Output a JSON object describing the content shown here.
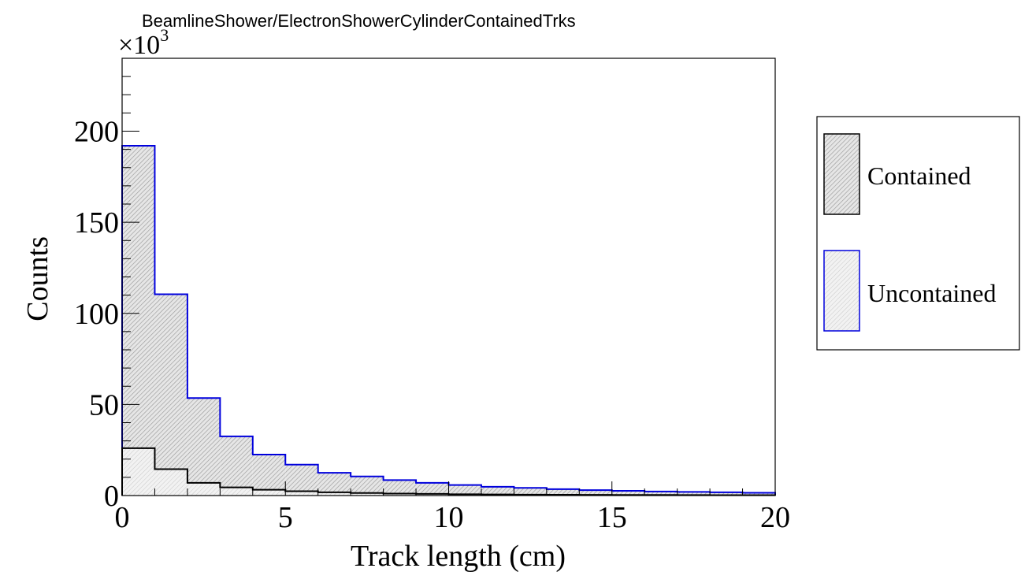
{
  "chart_data": {
    "type": "bar",
    "title": "BeamlineShower/ElectronShowerCylinderContainedTrks",
    "xlabel": "Track length (cm)",
    "ylabel": "Counts",
    "y_multiplier_label": "×10",
    "y_multiplier_exponent": "3",
    "xlim": [
      0,
      20
    ],
    "ylim": [
      0,
      240
    ],
    "x_ticks": [
      "0",
      "5",
      "10",
      "15",
      "20"
    ],
    "y_ticks": [
      "0",
      "50",
      "100",
      "150",
      "200"
    ],
    "bin_edges": [
      0,
      1,
      2,
      3,
      4,
      5,
      6,
      7,
      8,
      9,
      10,
      11,
      12,
      13,
      14,
      15,
      16,
      17,
      18,
      19,
      20
    ],
    "series": [
      {
        "name": "Contained",
        "color": "#000000",
        "values": [
          26,
          14.5,
          7,
          4.5,
          3.2,
          2.4,
          1.8,
          1.4,
          1.1,
          0.9,
          0.7,
          0.6,
          0.5,
          0.45,
          0.4,
          0.35,
          0.3,
          0.25,
          0.22,
          0.2
        ]
      },
      {
        "name": "Uncontained",
        "color": "#0000dd",
        "values": [
          192,
          110.5,
          53.5,
          32.5,
          22.5,
          17,
          12.5,
          10.5,
          8.5,
          7,
          5.8,
          4.8,
          4.2,
          3.5,
          3,
          2.6,
          2.2,
          2,
          1.8,
          1.5
        ]
      }
    ],
    "legend_position": "right"
  }
}
